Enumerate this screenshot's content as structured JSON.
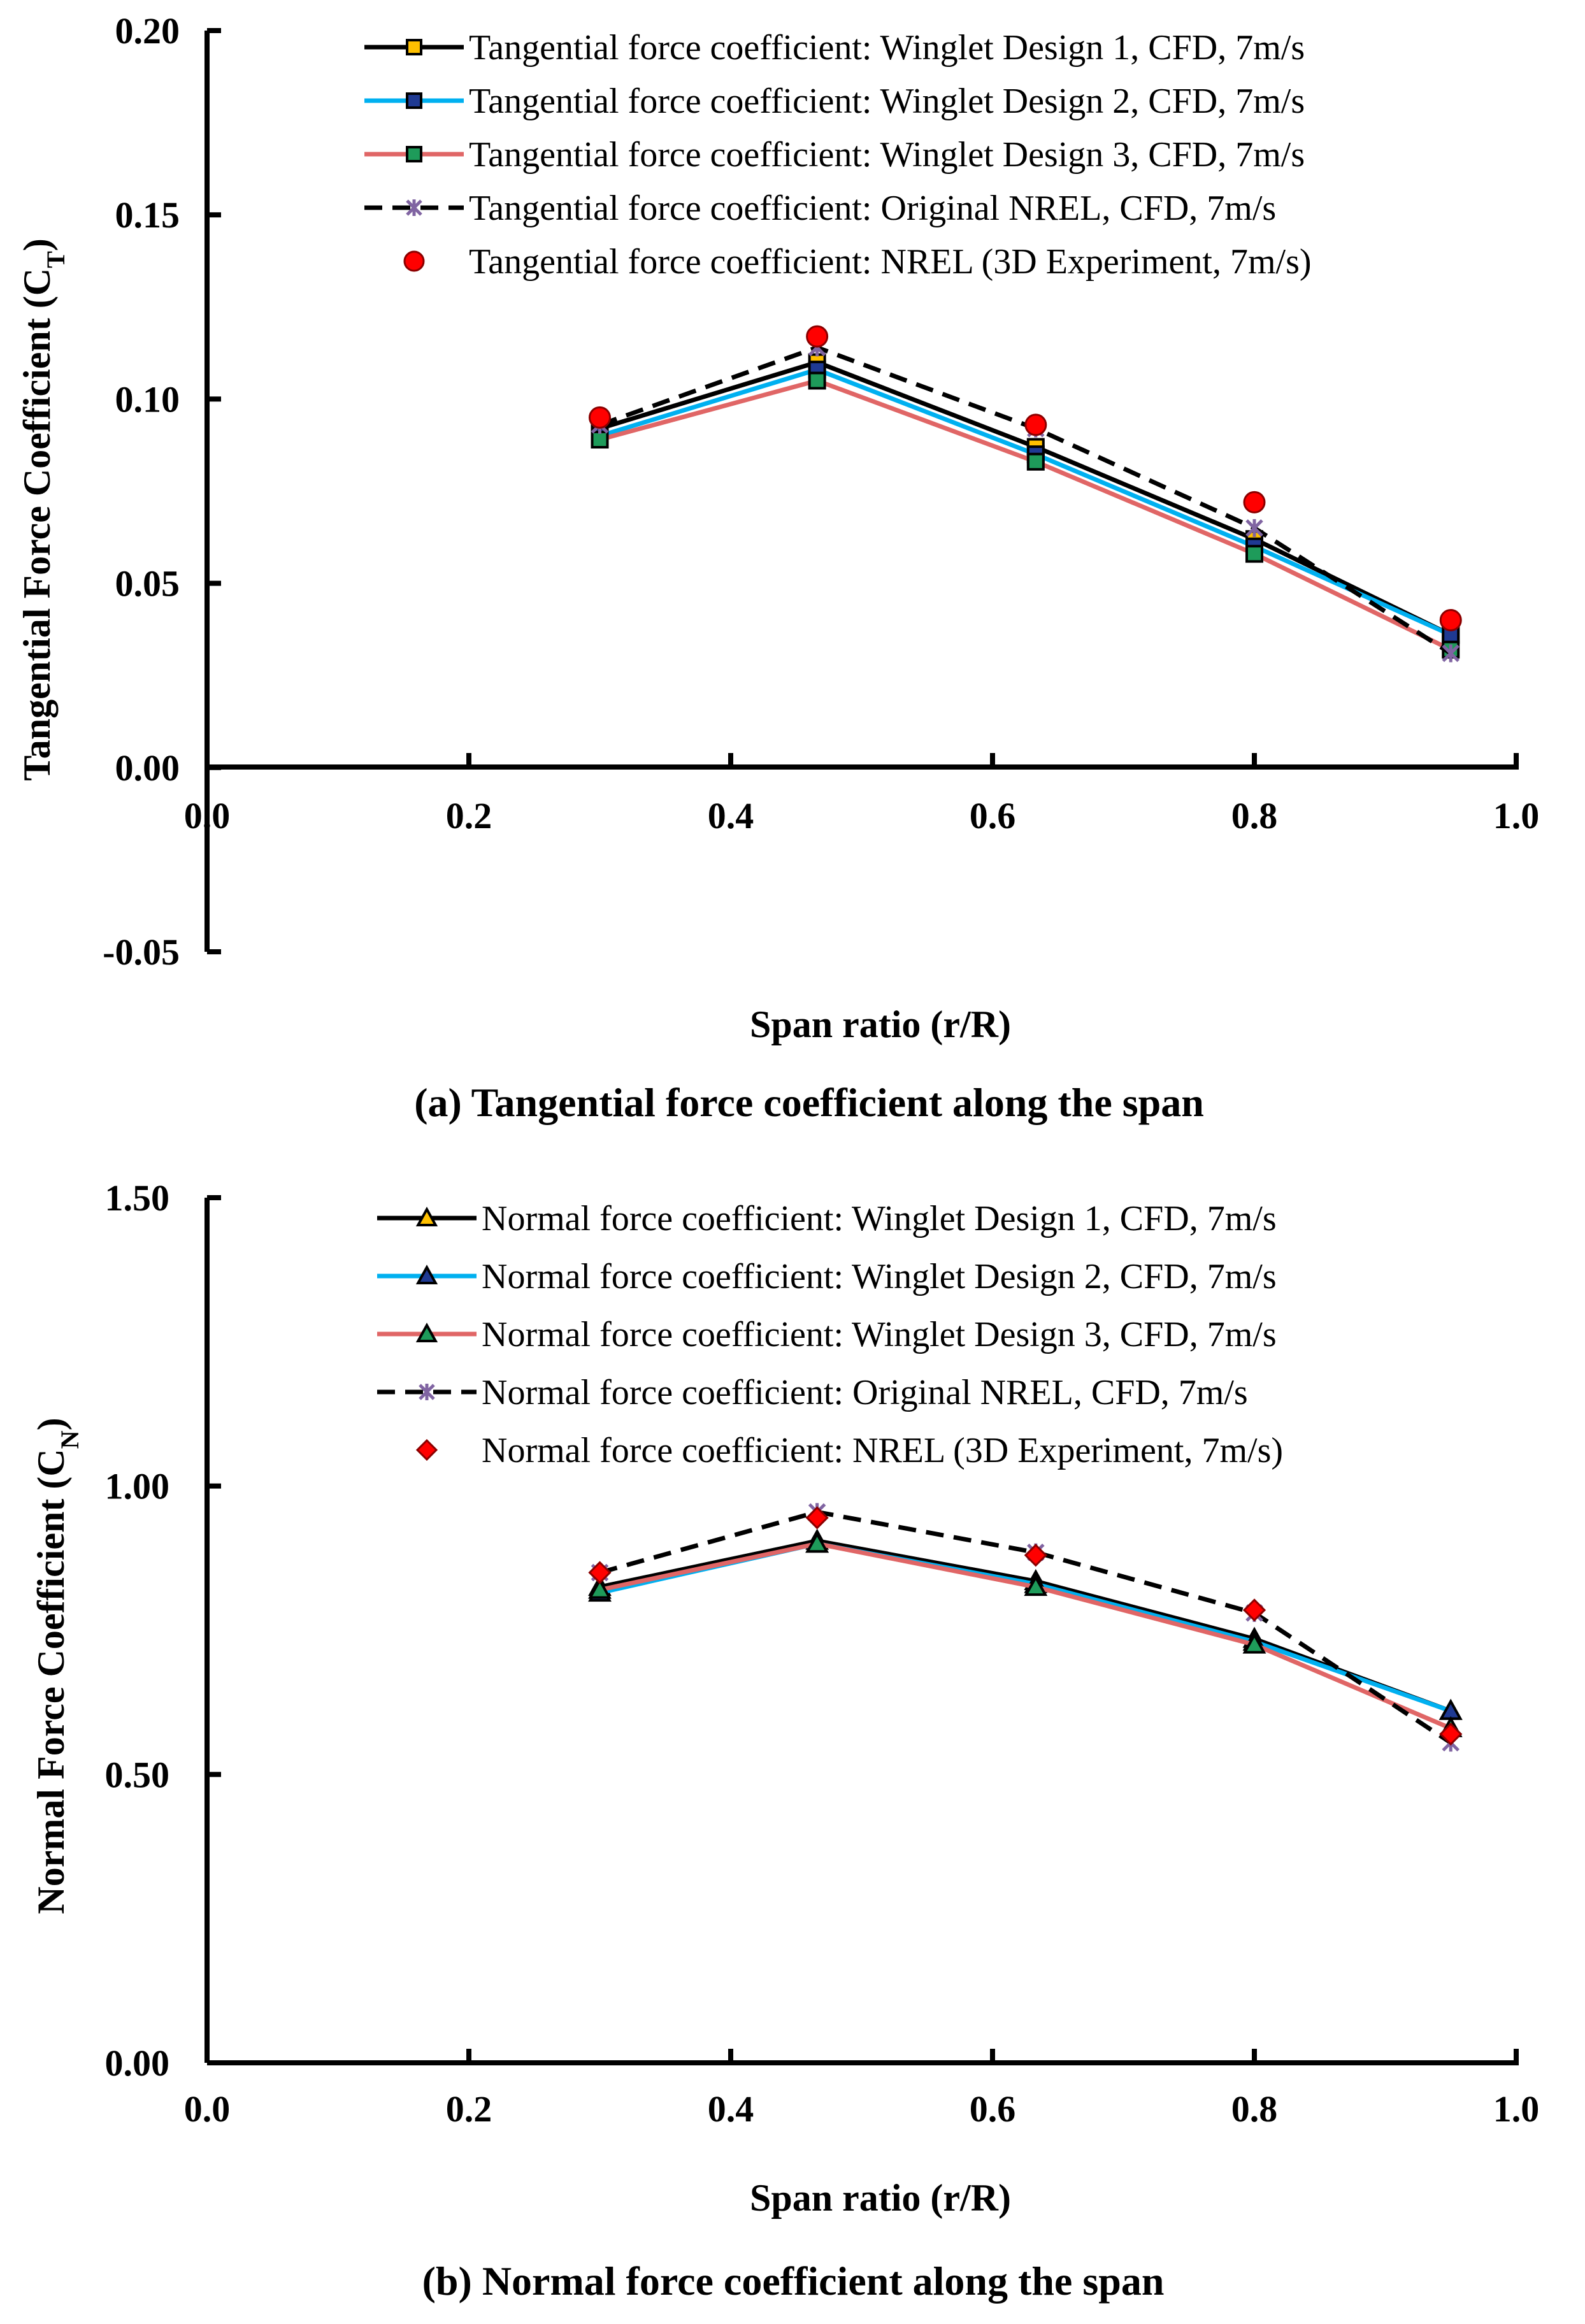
{
  "chart_data": [
    {
      "type": "line",
      "caption": "(a) Tangential force coefficient along the span",
      "xlabel": "Span ratio (r/R)",
      "ylabel_main": "Tangential Force Coefficient (C",
      "ylabel_sub": "T",
      "ylabel_close": ")",
      "xlim": [
        0.0,
        1.0
      ],
      "ylim": [
        -0.05,
        0.2
      ],
      "x_ticks": [
        {
          "v": 0.0,
          "label": "0.0"
        },
        {
          "v": 0.2,
          "label": "0.2"
        },
        {
          "v": 0.4,
          "label": "0.4"
        },
        {
          "v": 0.6,
          "label": "0.6"
        },
        {
          "v": 0.8,
          "label": "0.8"
        },
        {
          "v": 1.0,
          "label": "1.0"
        }
      ],
      "y_ticks": [
        {
          "v": -0.05,
          "label": "-0.05"
        },
        {
          "v": 0.0,
          "label": "0.00"
        },
        {
          "v": 0.05,
          "label": "0.05"
        },
        {
          "v": 0.1,
          "label": "0.10"
        },
        {
          "v": 0.15,
          "label": "0.15"
        },
        {
          "v": 0.2,
          "label": "0.20"
        }
      ],
      "x": [
        0.3,
        0.466,
        0.633,
        0.8,
        0.95
      ],
      "series": [
        {
          "name": "Tangential force coefficient: Winglet Design 1, CFD, 7m/s",
          "line": "#000000",
          "dash": "",
          "marker": "square",
          "marker_fill": "#FFC000",
          "values": [
            0.092,
            0.11,
            0.087,
            0.062,
            0.036
          ]
        },
        {
          "name": "Tangential force coefficient: Winglet Design 2, CFD, 7m/s",
          "line": "#00B0F0",
          "dash": "",
          "marker": "square",
          "marker_fill": "#1F3A93",
          "values": [
            0.09,
            0.108,
            0.085,
            0.06,
            0.036
          ]
        },
        {
          "name": "Tangential force coefficient: Winglet Design 3, CFD, 7m/s",
          "line": "#E06666",
          "dash": "",
          "marker": "square",
          "marker_fill": "#1E9B5A",
          "values": [
            0.089,
            0.105,
            0.083,
            0.058,
            0.032
          ]
        },
        {
          "name": "Tangential force coefficient: Original NREL, CFD, 7m/s",
          "line": "#000000",
          "dash": "dashed",
          "marker": "star",
          "marker_fill": "#8064A2",
          "values": [
            0.093,
            0.114,
            0.092,
            0.065,
            0.031
          ]
        },
        {
          "name": "Tangential force coefficient: NREL (3D Experiment, 7m/s)",
          "line": "none",
          "dash": "",
          "marker": "circle",
          "marker_fill": "#FF0000",
          "values": [
            0.095,
            0.117,
            0.093,
            0.072,
            0.04
          ]
        }
      ]
    },
    {
      "type": "line",
      "caption": "(b) Normal force coefficient along the span",
      "xlabel": "Span ratio (r/R)",
      "ylabel_main": "Normal Force Coefficient (C",
      "ylabel_sub": "N",
      "ylabel_close": ")",
      "xlim": [
        0.0,
        1.0
      ],
      "ylim": [
        0.0,
        1.5
      ],
      "x_ticks": [
        {
          "v": 0.0,
          "label": "0.0"
        },
        {
          "v": 0.2,
          "label": "0.2"
        },
        {
          "v": 0.4,
          "label": "0.4"
        },
        {
          "v": 0.6,
          "label": "0.6"
        },
        {
          "v": 0.8,
          "label": "0.8"
        },
        {
          "v": 1.0,
          "label": "1.0"
        }
      ],
      "y_ticks": [
        {
          "v": 0.0,
          "label": "0.00"
        },
        {
          "v": 0.5,
          "label": "0.50"
        },
        {
          "v": 1.0,
          "label": "1.00"
        },
        {
          "v": 1.5,
          "label": "1.50"
        }
      ],
      "x": [
        0.3,
        0.466,
        0.633,
        0.8,
        0.95
      ],
      "series": [
        {
          "name": "Normal force coefficient: Winglet Design 1, CFD, 7m/s",
          "line": "#000000",
          "dash": "",
          "marker": "triangle",
          "marker_fill": "#FFC000",
          "values": [
            0.825,
            0.905,
            0.835,
            0.735,
            0.61
          ]
        },
        {
          "name": "Normal force coefficient: Winglet Design 2, CFD, 7m/s",
          "line": "#00B0F0",
          "dash": "",
          "marker": "triangle",
          "marker_fill": "#1F3A93",
          "values": [
            0.815,
            0.9,
            0.83,
            0.73,
            0.61
          ]
        },
        {
          "name": "Normal force coefficient: Winglet Design 3, CFD, 7m/s",
          "line": "#E06666",
          "dash": "",
          "marker": "triangle",
          "marker_fill": "#1E9B5A",
          "values": [
            0.82,
            0.9,
            0.825,
            0.725,
            0.58
          ]
        },
        {
          "name": "Normal force coefficient: Original NREL, CFD, 7m/s",
          "line": "#000000",
          "dash": "dashed",
          "marker": "star",
          "marker_fill": "#8064A2",
          "values": [
            0.85,
            0.955,
            0.885,
            0.78,
            0.555
          ]
        },
        {
          "name": "Normal force coefficient: NREL (3D Experiment, 7m/s)",
          "line": "none",
          "dash": "",
          "marker": "diamond",
          "marker_fill": "#FF0000",
          "values": [
            0.85,
            0.945,
            0.88,
            0.785,
            0.57
          ]
        }
      ]
    }
  ]
}
